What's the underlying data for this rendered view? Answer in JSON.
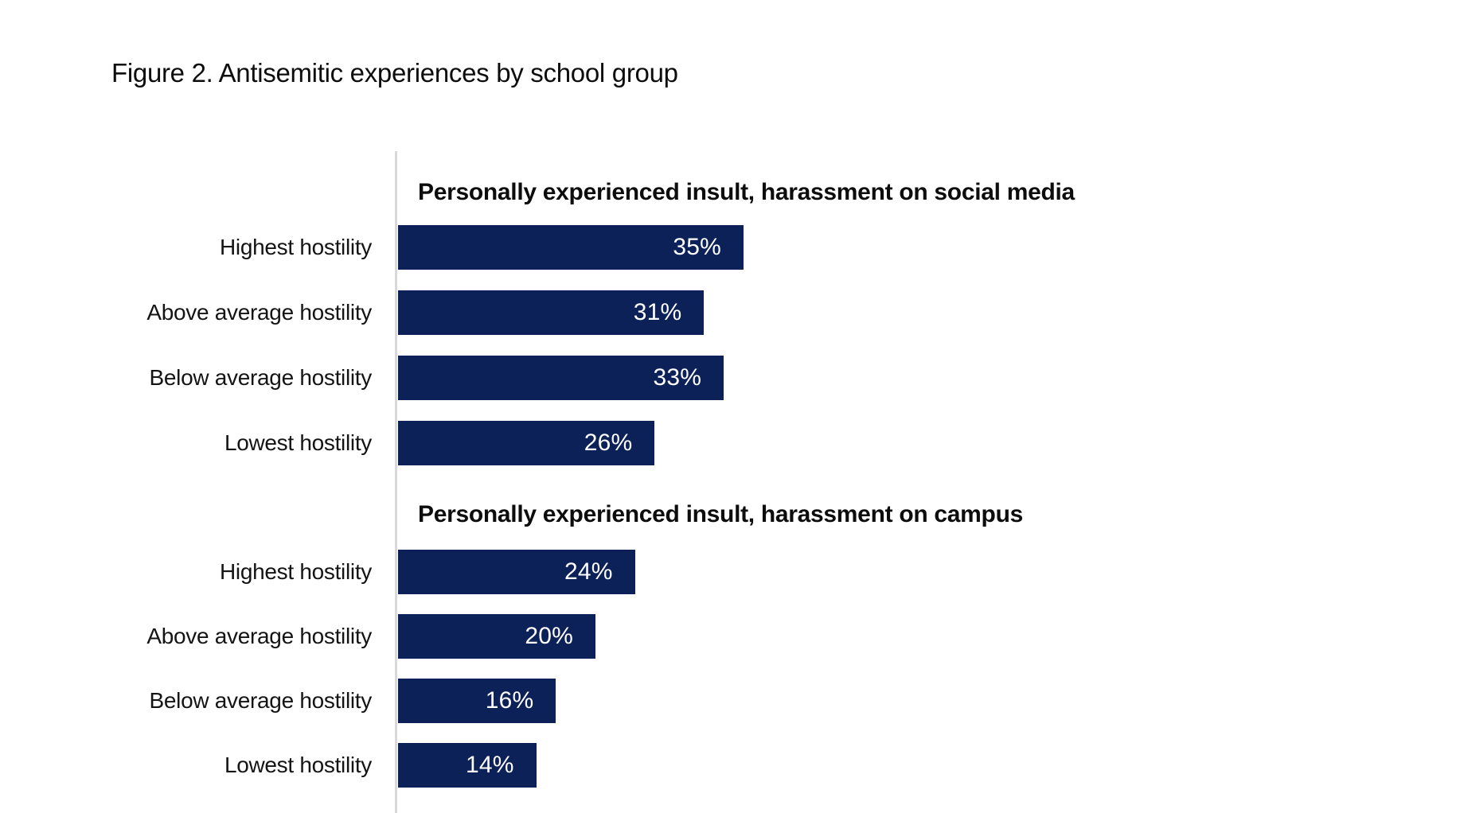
{
  "figure": {
    "title": "Figure 2. Antisemitic experiences by school group"
  },
  "colors": {
    "bar": "#0b2158",
    "axis_line": "#d9d9d9",
    "text": "#0d0d0d",
    "bar_value_text": "#ffffff",
    "background": "#ffffff"
  },
  "chart_data": {
    "type": "bar",
    "orientation": "horizontal",
    "unit": "percent",
    "xlim": [
      0,
      35
    ],
    "grid": false,
    "legend": false,
    "value_labels": "inside-end",
    "groups": [
      {
        "header": "Personally experienced insult, harassment on social media",
        "categories": [
          "Highest hostility",
          "Above average hostility",
          "Below average hostility",
          "Lowest hostility"
        ],
        "values": [
          35,
          31,
          33,
          26
        ],
        "rows": [
          {
            "category": "Highest hostility",
            "value": 35,
            "display": "35%"
          },
          {
            "category": "Above average hostility",
            "value": 31,
            "display": "31%"
          },
          {
            "category": "Below average hostility",
            "value": 33,
            "display": "33%"
          },
          {
            "category": "Lowest hostility",
            "value": 26,
            "display": "26%"
          }
        ]
      },
      {
        "header": "Personally experienced insult, harassment on campus",
        "categories": [
          "Highest hostility",
          "Above average hostility",
          "Below average hostility",
          "Lowest hostility"
        ],
        "values": [
          24,
          20,
          16,
          14
        ],
        "rows": [
          {
            "category": "Highest hostility",
            "value": 24,
            "display": "24%"
          },
          {
            "category": "Above average hostility",
            "value": 20,
            "display": "20%"
          },
          {
            "category": "Below average hostility",
            "value": 16,
            "display": "16%"
          },
          {
            "category": "Lowest hostility",
            "value": 14,
            "display": "14%"
          }
        ]
      }
    ]
  }
}
